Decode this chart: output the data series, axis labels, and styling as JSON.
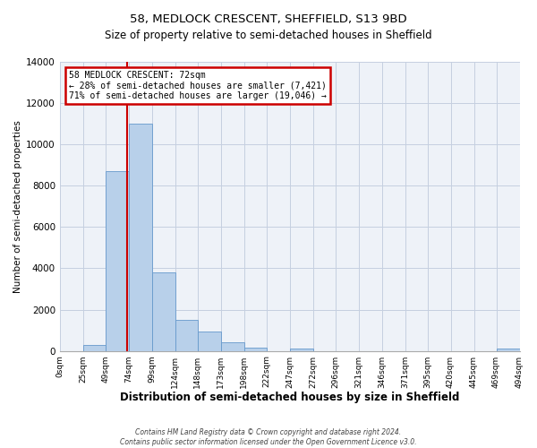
{
  "title": "58, MEDLOCK CRESCENT, SHEFFIELD, S13 9BD",
  "subtitle": "Size of property relative to semi-detached houses in Sheffield",
  "bar_bins": [
    0,
    25,
    49,
    74,
    99,
    124,
    148,
    173,
    198,
    222,
    247,
    272,
    296,
    321,
    346,
    371,
    395,
    420,
    445,
    469,
    494
  ],
  "bar_values": [
    0,
    300,
    8700,
    11000,
    3800,
    1500,
    950,
    400,
    150,
    0,
    100,
    0,
    0,
    0,
    0,
    0,
    0,
    0,
    0,
    100
  ],
  "bar_color": "#b8d0ea",
  "bar_edge_color": "#6699cc",
  "property_line_x": 72,
  "property_line_color": "#cc0000",
  "annotation_title": "58 MEDLOCK CRESCENT: 72sqm",
  "annotation_line1": "← 28% of semi-detached houses are smaller (7,421)",
  "annotation_line2": "71% of semi-detached houses are larger (19,046) →",
  "annotation_box_color": "#cc0000",
  "xlabel": "Distribution of semi-detached houses by size in Sheffield",
  "ylabel": "Number of semi-detached properties",
  "ylim": [
    0,
    14000
  ],
  "yticks": [
    0,
    2000,
    4000,
    6000,
    8000,
    10000,
    12000,
    14000
  ],
  "xtick_labels": [
    "0sqm",
    "25sqm",
    "49sqm",
    "74sqm",
    "99sqm",
    "124sqm",
    "148sqm",
    "173sqm",
    "198sqm",
    "222sqm",
    "247sqm",
    "272sqm",
    "296sqm",
    "321sqm",
    "346sqm",
    "371sqm",
    "395sqm",
    "420sqm",
    "445sqm",
    "469sqm",
    "494sqm"
  ],
  "footer1": "Contains HM Land Registry data © Crown copyright and database right 2024.",
  "footer2": "Contains public sector information licensed under the Open Government Licence v3.0.",
  "plot_bg_color": "#eef2f8",
  "grid_color": "#c5cfe0",
  "title_fontsize": 9.5,
  "subtitle_fontsize": 8.5
}
